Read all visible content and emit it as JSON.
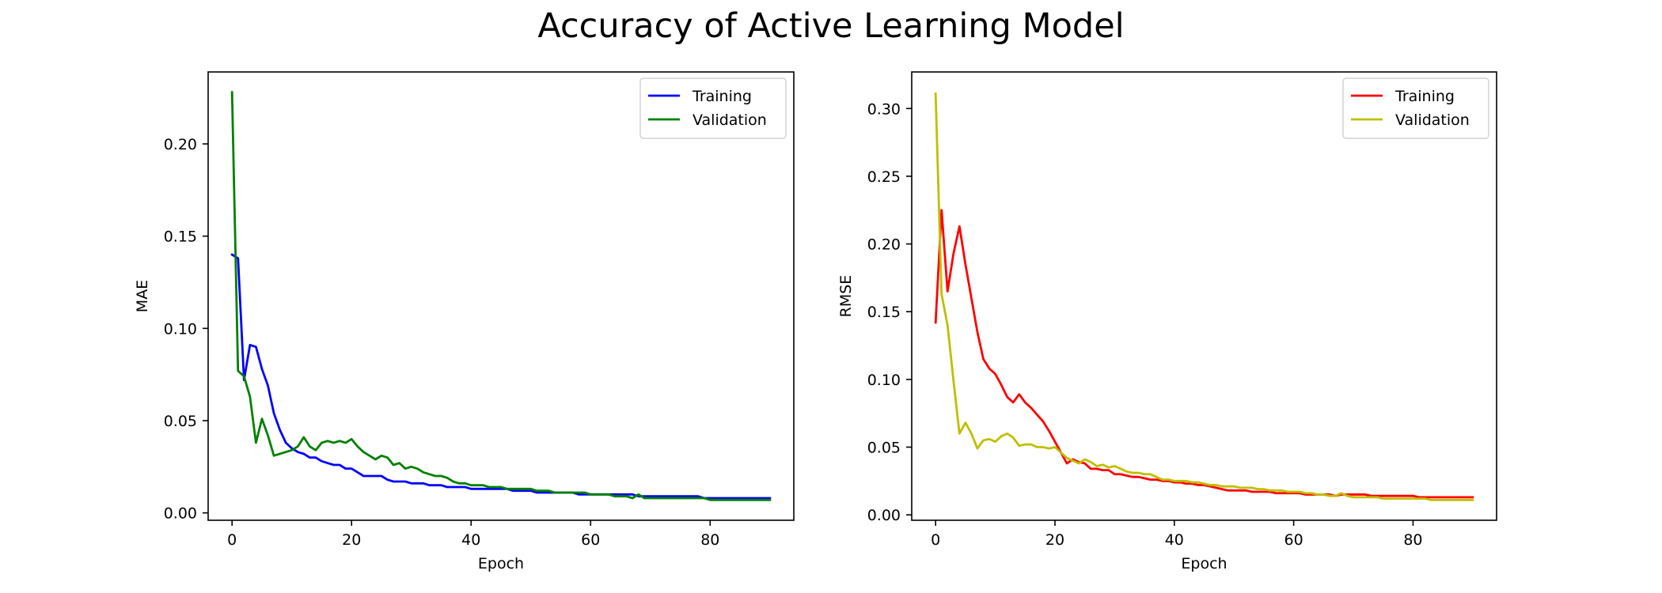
{
  "figure": {
    "title": "Accuracy of Active Learning Model"
  },
  "chart_data": [
    {
      "type": "line",
      "xlabel": "Epoch",
      "ylabel": "MAE",
      "xlim": [
        -4,
        94
      ],
      "ylim": [
        -0.004,
        0.239
      ],
      "xticks": [
        0,
        20,
        40,
        60,
        80
      ],
      "yticks": [
        0.0,
        0.05,
        0.1,
        0.15,
        0.2
      ],
      "ytick_labels": [
        "0.00",
        "0.05",
        "0.10",
        "0.15",
        "0.20"
      ],
      "legend": "top-right",
      "grid": false,
      "series": [
        {
          "name": "Training",
          "color": "#0000ff",
          "x": [
            0,
            1,
            2,
            3,
            4,
            5,
            6,
            7,
            8,
            9,
            10,
            11,
            12,
            13,
            14,
            15,
            16,
            17,
            18,
            19,
            20,
            21,
            22,
            23,
            24,
            25,
            26,
            27,
            28,
            29,
            30,
            31,
            32,
            33,
            34,
            35,
            36,
            37,
            38,
            39,
            40,
            41,
            42,
            43,
            44,
            45,
            46,
            47,
            48,
            49,
            50,
            51,
            52,
            53,
            54,
            55,
            56,
            57,
            58,
            59,
            60,
            61,
            62,
            63,
            64,
            65,
            66,
            67,
            68,
            69,
            70,
            71,
            72,
            73,
            74,
            75,
            76,
            77,
            78,
            79,
            80,
            81,
            82,
            83,
            84,
            85,
            86,
            87,
            88,
            89,
            90
          ],
          "values": [
            0.14,
            0.138,
            0.072,
            0.091,
            0.09,
            0.078,
            0.069,
            0.054,
            0.045,
            0.038,
            0.035,
            0.033,
            0.032,
            0.03,
            0.03,
            0.028,
            0.027,
            0.026,
            0.026,
            0.024,
            0.024,
            0.022,
            0.02,
            0.02,
            0.02,
            0.02,
            0.018,
            0.017,
            0.017,
            0.017,
            0.016,
            0.016,
            0.016,
            0.015,
            0.015,
            0.015,
            0.014,
            0.014,
            0.014,
            0.014,
            0.013,
            0.013,
            0.013,
            0.013,
            0.013,
            0.013,
            0.013,
            0.012,
            0.012,
            0.012,
            0.012,
            0.011,
            0.011,
            0.011,
            0.011,
            0.011,
            0.011,
            0.011,
            0.01,
            0.01,
            0.01,
            0.01,
            0.01,
            0.01,
            0.01,
            0.01,
            0.01,
            0.01,
            0.009,
            0.009,
            0.009,
            0.009,
            0.009,
            0.009,
            0.009,
            0.009,
            0.009,
            0.009,
            0.009,
            0.008,
            0.008,
            0.008,
            0.008,
            0.008,
            0.008,
            0.008,
            0.008,
            0.008,
            0.008,
            0.008,
            0.008
          ]
        },
        {
          "name": "Validation",
          "color": "#008000",
          "x": [
            0,
            1,
            2,
            3,
            4,
            5,
            6,
            7,
            8,
            9,
            10,
            11,
            12,
            13,
            14,
            15,
            16,
            17,
            18,
            19,
            20,
            21,
            22,
            23,
            24,
            25,
            26,
            27,
            28,
            29,
            30,
            31,
            32,
            33,
            34,
            35,
            36,
            37,
            38,
            39,
            40,
            41,
            42,
            43,
            44,
            45,
            46,
            47,
            48,
            49,
            50,
            51,
            52,
            53,
            54,
            55,
            56,
            57,
            58,
            59,
            60,
            61,
            62,
            63,
            64,
            65,
            66,
            67,
            68,
            69,
            70,
            71,
            72,
            73,
            74,
            75,
            76,
            77,
            78,
            79,
            80,
            81,
            82,
            83,
            84,
            85,
            86,
            87,
            88,
            89,
            90
          ],
          "values": [
            0.228,
            0.077,
            0.074,
            0.063,
            0.038,
            0.051,
            0.042,
            0.031,
            0.032,
            0.033,
            0.034,
            0.036,
            0.041,
            0.036,
            0.034,
            0.038,
            0.039,
            0.038,
            0.039,
            0.038,
            0.04,
            0.036,
            0.033,
            0.031,
            0.029,
            0.031,
            0.03,
            0.026,
            0.027,
            0.024,
            0.025,
            0.024,
            0.022,
            0.021,
            0.02,
            0.02,
            0.019,
            0.017,
            0.016,
            0.016,
            0.015,
            0.015,
            0.015,
            0.014,
            0.014,
            0.014,
            0.013,
            0.013,
            0.013,
            0.013,
            0.013,
            0.012,
            0.012,
            0.012,
            0.011,
            0.011,
            0.011,
            0.011,
            0.011,
            0.011,
            0.01,
            0.01,
            0.01,
            0.01,
            0.009,
            0.009,
            0.009,
            0.008,
            0.01,
            0.008,
            0.008,
            0.008,
            0.008,
            0.008,
            0.008,
            0.008,
            0.008,
            0.008,
            0.008,
            0.008,
            0.007,
            0.007,
            0.007,
            0.007,
            0.007,
            0.007,
            0.007,
            0.007,
            0.007,
            0.007,
            0.007
          ]
        }
      ]
    },
    {
      "type": "line",
      "xlabel": "Epoch",
      "ylabel": "RMSE",
      "xlim": [
        -4,
        94
      ],
      "ylim": [
        -0.004,
        0.327
      ],
      "xticks": [
        0,
        20,
        40,
        60,
        80
      ],
      "yticks": [
        0.0,
        0.05,
        0.1,
        0.15,
        0.2,
        0.25,
        0.3
      ],
      "ytick_labels": [
        "0.00",
        "0.05",
        "0.10",
        "0.15",
        "0.20",
        "0.25",
        "0.30"
      ],
      "legend": "top-right",
      "grid": false,
      "series": [
        {
          "name": "Training",
          "color": "#ff0000",
          "x": [
            0,
            1,
            2,
            3,
            4,
            5,
            6,
            7,
            8,
            9,
            10,
            11,
            12,
            13,
            14,
            15,
            16,
            17,
            18,
            19,
            20,
            21,
            22,
            23,
            24,
            25,
            26,
            27,
            28,
            29,
            30,
            31,
            32,
            33,
            34,
            35,
            36,
            37,
            38,
            39,
            40,
            41,
            42,
            43,
            44,
            45,
            46,
            47,
            48,
            49,
            50,
            51,
            52,
            53,
            54,
            55,
            56,
            57,
            58,
            59,
            60,
            61,
            62,
            63,
            64,
            65,
            66,
            67,
            68,
            69,
            70,
            71,
            72,
            73,
            74,
            75,
            76,
            77,
            78,
            79,
            80,
            81,
            82,
            83,
            84,
            85,
            86,
            87,
            88,
            89,
            90
          ],
          "values": [
            0.142,
            0.225,
            0.165,
            0.193,
            0.213,
            0.185,
            0.16,
            0.135,
            0.115,
            0.108,
            0.104,
            0.096,
            0.087,
            0.083,
            0.089,
            0.083,
            0.079,
            0.074,
            0.069,
            0.062,
            0.054,
            0.046,
            0.038,
            0.041,
            0.039,
            0.038,
            0.034,
            0.034,
            0.033,
            0.033,
            0.03,
            0.03,
            0.029,
            0.028,
            0.028,
            0.027,
            0.026,
            0.026,
            0.025,
            0.025,
            0.024,
            0.024,
            0.023,
            0.023,
            0.022,
            0.022,
            0.021,
            0.02,
            0.019,
            0.018,
            0.018,
            0.018,
            0.018,
            0.017,
            0.017,
            0.017,
            0.017,
            0.016,
            0.016,
            0.016,
            0.016,
            0.016,
            0.015,
            0.015,
            0.015,
            0.015,
            0.015,
            0.014,
            0.015,
            0.015,
            0.015,
            0.015,
            0.015,
            0.014,
            0.014,
            0.014,
            0.014,
            0.014,
            0.014,
            0.014,
            0.014,
            0.013,
            0.013,
            0.013,
            0.013,
            0.013,
            0.013,
            0.013,
            0.013,
            0.013,
            0.013
          ]
        },
        {
          "name": "Validation",
          "color": "#bfbf00",
          "x": [
            0,
            1,
            2,
            3,
            4,
            5,
            6,
            7,
            8,
            9,
            10,
            11,
            12,
            13,
            14,
            15,
            16,
            17,
            18,
            19,
            20,
            21,
            22,
            23,
            24,
            25,
            26,
            27,
            28,
            29,
            30,
            31,
            32,
            33,
            34,
            35,
            36,
            37,
            38,
            39,
            40,
            41,
            42,
            43,
            44,
            45,
            46,
            47,
            48,
            49,
            50,
            51,
            52,
            53,
            54,
            55,
            56,
            57,
            58,
            59,
            60,
            61,
            62,
            63,
            64,
            65,
            66,
            67,
            68,
            69,
            70,
            71,
            72,
            73,
            74,
            75,
            76,
            77,
            78,
            79,
            80,
            81,
            82,
            83,
            84,
            85,
            86,
            87,
            88,
            89,
            90
          ],
          "values": [
            0.311,
            0.163,
            0.14,
            0.099,
            0.06,
            0.068,
            0.06,
            0.049,
            0.055,
            0.056,
            0.054,
            0.058,
            0.06,
            0.057,
            0.051,
            0.052,
            0.052,
            0.05,
            0.05,
            0.049,
            0.05,
            0.046,
            0.042,
            0.04,
            0.038,
            0.041,
            0.039,
            0.036,
            0.037,
            0.035,
            0.036,
            0.034,
            0.032,
            0.031,
            0.031,
            0.03,
            0.03,
            0.028,
            0.026,
            0.026,
            0.025,
            0.025,
            0.025,
            0.024,
            0.024,
            0.023,
            0.022,
            0.022,
            0.021,
            0.021,
            0.021,
            0.02,
            0.02,
            0.02,
            0.019,
            0.019,
            0.018,
            0.018,
            0.018,
            0.017,
            0.017,
            0.017,
            0.016,
            0.016,
            0.015,
            0.015,
            0.014,
            0.014,
            0.016,
            0.014,
            0.013,
            0.013,
            0.013,
            0.013,
            0.013,
            0.012,
            0.012,
            0.012,
            0.012,
            0.012,
            0.012,
            0.012,
            0.012,
            0.011,
            0.011,
            0.011,
            0.011,
            0.011,
            0.011,
            0.011,
            0.011
          ]
        }
      ]
    }
  ]
}
